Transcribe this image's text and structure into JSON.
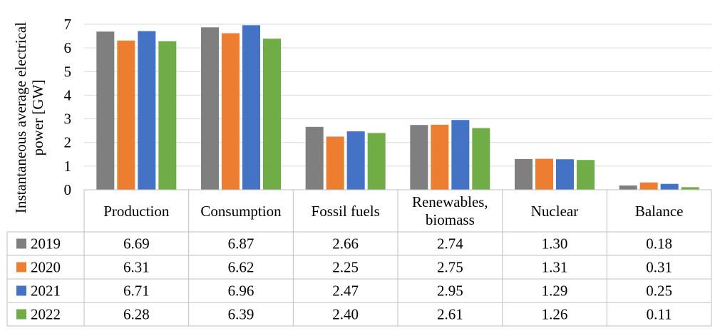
{
  "chart_data": {
    "type": "bar",
    "ylabel": "Instantaneous average electrical power [GW]",
    "ylim": [
      0,
      7
    ],
    "yticks": [
      0,
      1,
      2,
      3,
      4,
      5,
      6,
      7
    ],
    "grid": true,
    "legend": "table-rows",
    "categories": [
      "Production",
      "Consumption",
      "Fossil fuels",
      "Renewables, biomass",
      "Nuclear",
      "Balance"
    ],
    "series": [
      {
        "name": "2019",
        "color": "#7f7f7f",
        "values": [
          6.69,
          6.87,
          2.66,
          2.74,
          1.3,
          0.18
        ],
        "labels": [
          "6.69",
          "6.87",
          "2.66",
          "2.74",
          "1.30",
          "0.18"
        ]
      },
      {
        "name": "2020",
        "color": "#ed7d31",
        "values": [
          6.31,
          6.62,
          2.25,
          2.75,
          1.31,
          0.31
        ],
        "labels": [
          "6.31",
          "6.62",
          "2.25",
          "2.75",
          "1.31",
          "0.31"
        ]
      },
      {
        "name": "2021",
        "color": "#4472c4",
        "values": [
          6.71,
          6.96,
          2.47,
          2.95,
          1.29,
          0.25
        ],
        "labels": [
          "6.71",
          "6.96",
          "2.47",
          "2.95",
          "1.29",
          "0.25"
        ]
      },
      {
        "name": "2022",
        "color": "#70ad47",
        "values": [
          6.28,
          6.39,
          2.4,
          2.61,
          1.26,
          0.11
        ],
        "labels": [
          "6.28",
          "6.39",
          "2.40",
          "2.61",
          "1.26",
          "0.11"
        ]
      }
    ]
  }
}
